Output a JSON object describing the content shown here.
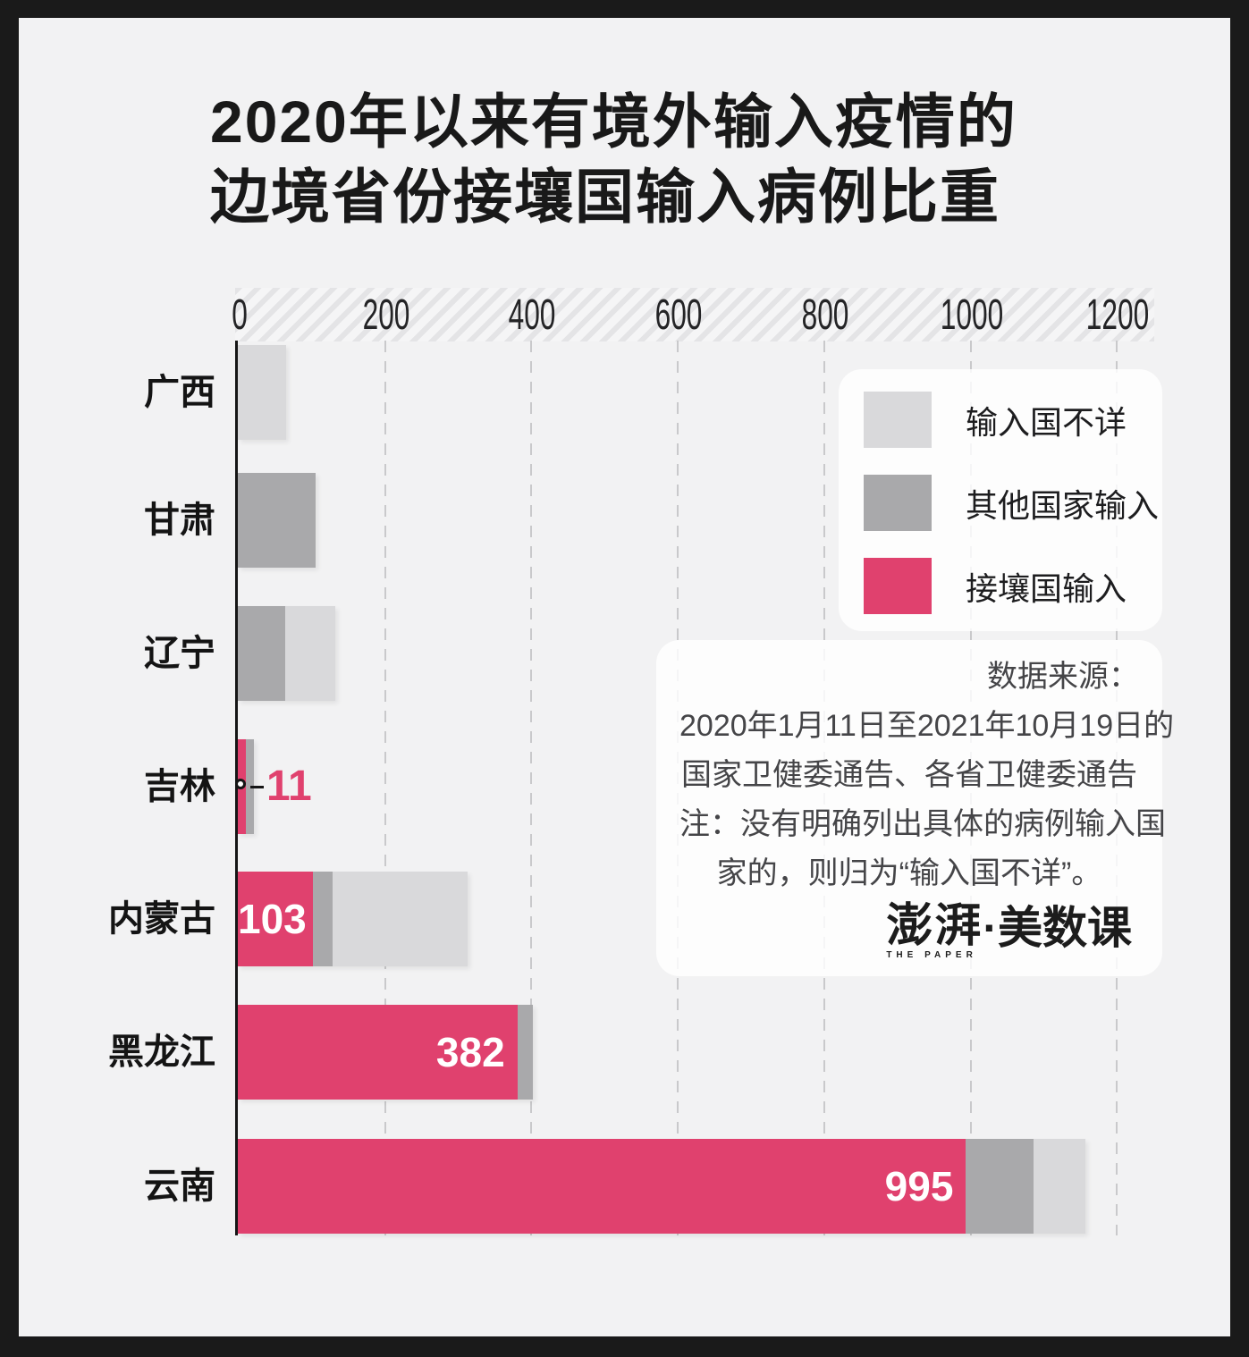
{
  "title": {
    "line1": "2020年以来有境外输入疫情的",
    "line2": "边境省份接壤国输入病例比重"
  },
  "colors": {
    "frame": "#1a1a1a",
    "background": "#f2f2f3",
    "border_country": "#e0416e",
    "other_country": "#a9a9ab",
    "unknown_country": "#d9d9db",
    "gridline": "#c9c9cb",
    "axis_line": "#161616"
  },
  "legend": {
    "items": [
      {
        "key": "unknown",
        "label": "输入国不详",
        "color": "#d9d9db"
      },
      {
        "key": "other",
        "label": "其他国家输入",
        "color": "#a9a9ab"
      },
      {
        "key": "border",
        "label": "接壤国输入",
        "color": "#e0416e"
      }
    ]
  },
  "note": {
    "lines": [
      "数据来源：",
      "2020年1月11日至2021年10月19日的",
      "国家卫健委通告、各省卫健委通告",
      "注：没有明确列出具体的病例输入国",
      "家的，则归为“输入国不详”。"
    ],
    "logo": {
      "cn_left": "澎湃",
      "en": "THE PAPER",
      "cn_right": "·美数课"
    }
  },
  "chart_data": {
    "type": "bar",
    "orientation": "horizontal",
    "stacked": true,
    "title": "2020年以来有境外输入疫情的边境省份接壤国输入病例比重",
    "xlim": [
      0,
      1200
    ],
    "x_ticks": [
      0,
      200,
      400,
      600,
      800,
      1000,
      1200
    ],
    "grid": "dashed-vertical",
    "legend_position": "upper-right",
    "categories": [
      "广西",
      "甘肃",
      "辽宁",
      "吉林",
      "内蒙古",
      "黑龙江",
      "云南"
    ],
    "series": [
      {
        "name": "接壤国输入",
        "key": "border",
        "color": "#e0416e",
        "values": [
          0,
          0,
          0,
          11,
          103,
          382,
          995
        ]
      },
      {
        "name": "其他国家输入",
        "key": "other",
        "color": "#a9a9ab",
        "values": [
          0,
          106,
          65,
          11,
          26,
          21,
          92
        ]
      },
      {
        "name": "输入国不详",
        "key": "unknown",
        "color": "#d9d9db",
        "values": [
          66,
          0,
          68,
          0,
          185,
          0,
          71
        ]
      }
    ],
    "rows": [
      {
        "name": "广西",
        "segments": [
          {
            "series": "unknown",
            "value": 66
          }
        ],
        "label": null
      },
      {
        "name": "甘肃",
        "segments": [
          {
            "series": "other",
            "value": 106
          }
        ],
        "label": null
      },
      {
        "name": "辽宁",
        "segments": [
          {
            "series": "other",
            "value": 65
          },
          {
            "series": "unknown",
            "value": 68
          }
        ],
        "label": null
      },
      {
        "name": "吉林",
        "segments": [
          {
            "series": "border",
            "value": 11
          },
          {
            "series": "other",
            "value": 11
          }
        ],
        "label": {
          "text": "11",
          "type": "callout"
        }
      },
      {
        "name": "内蒙古",
        "segments": [
          {
            "series": "border",
            "value": 103
          },
          {
            "series": "other",
            "value": 26
          },
          {
            "series": "unknown",
            "value": 185
          }
        ],
        "label": {
          "text": "103",
          "type": "inside"
        }
      },
      {
        "name": "黑龙江",
        "segments": [
          {
            "series": "border",
            "value": 382
          },
          {
            "series": "other",
            "value": 21
          }
        ],
        "label": {
          "text": "382",
          "type": "inside"
        }
      },
      {
        "name": "云南",
        "segments": [
          {
            "series": "border",
            "value": 995
          },
          {
            "series": "other",
            "value": 92
          },
          {
            "series": "unknown",
            "value": 71
          }
        ],
        "label": {
          "text": "995",
          "type": "inside"
        }
      }
    ]
  }
}
